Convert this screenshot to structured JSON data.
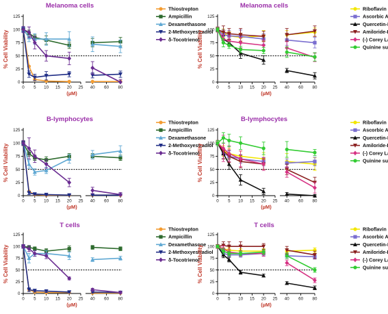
{
  "chart_data": [
    {
      "type": "line",
      "title": "Melanoma cells",
      "xlabel": "(µM)",
      "ylabel": "% Cell Viability",
      "x_ticks": [
        0,
        5,
        10,
        15,
        20,
        25,
        40,
        60,
        80
      ],
      "y_ticks": [
        0,
        25,
        50,
        75,
        100,
        125
      ],
      "x_break": [
        25,
        30
      ],
      "reference_line": 50,
      "x": [
        0,
        2.5,
        5,
        10,
        20,
        40,
        80
      ],
      "series": [
        {
          "name": "Thiostrepton",
          "color": "#f39c32",
          "marker": "circle",
          "values": [
            100,
            30,
            5,
            2,
            1,
            1,
            1
          ],
          "errors": [
            0,
            0,
            0,
            0,
            0,
            0,
            0
          ]
        },
        {
          "name": "Ampicillin",
          "color": "#2e6b2e",
          "marker": "square",
          "values": [
            100,
            93,
            85,
            80,
            70,
            75,
            77
          ],
          "errors": [
            5,
            6,
            5,
            8,
            6,
            8,
            8
          ]
        },
        {
          "name": "Dexamethasone",
          "color": "#5fa8d3",
          "marker": "triangle-up",
          "values": [
            100,
            85,
            82,
            82,
            82,
            72,
            68
          ],
          "errors": [
            5,
            8,
            10,
            12,
            14,
            14,
            12
          ]
        },
        {
          "name": "2-Methoxyestradiol",
          "color": "#1f2d86",
          "marker": "triangle-down",
          "values": [
            100,
            15,
            9,
            12,
            15,
            13,
            15
          ],
          "errors": [
            4,
            6,
            6,
            8,
            5,
            5,
            6
          ]
        },
        {
          "name": "δ-Tocotrienol",
          "color": "#6a2c91",
          "marker": "diamond",
          "values": [
            100,
            95,
            75,
            50,
            45,
            27,
            0
          ],
          "errors": [
            6,
            10,
            12,
            10,
            12,
            12,
            5
          ]
        }
      ]
    },
    {
      "type": "line",
      "title": "Melanoma cells",
      "xlabel": "(µM)",
      "ylabel": "% Cell Viability",
      "x_ticks": [
        0,
        5,
        10,
        15,
        20,
        25,
        40,
        60,
        80
      ],
      "y_ticks": [
        0,
        25,
        50,
        75,
        100,
        125
      ],
      "x_break": [
        25,
        30
      ],
      "reference_line": 50,
      "x": [
        0,
        2.5,
        5,
        10,
        20,
        40,
        80
      ],
      "series": [
        {
          "name": "Riboflavin",
          "color": "#f2e600",
          "marker": "circle",
          "values": [
            100,
            93,
            88,
            85,
            88,
            90,
            95
          ],
          "errors": [
            4,
            8,
            8,
            8,
            10,
            8,
            8
          ]
        },
        {
          "name": "Ascorbic Acid",
          "color": "#7b6fd0",
          "marker": "square",
          "values": [
            100,
            90,
            88,
            87,
            82,
            80,
            75
          ],
          "errors": [
            5,
            10,
            10,
            12,
            10,
            10,
            10
          ]
        },
        {
          "name": "Quercetin-HCL",
          "color": "#111111",
          "marker": "triangle-up",
          "values": [
            100,
            82,
            75,
            55,
            42,
            22,
            12
          ],
          "errors": [
            4,
            6,
            6,
            10,
            8,
            4,
            6
          ]
        },
        {
          "name": "Amiloride-HCL",
          "color": "#8b2020",
          "marker": "triangle-down",
          "values": [
            100,
            95,
            92,
            90,
            87,
            90,
            97
          ],
          "errors": [
            5,
            12,
            10,
            12,
            10,
            12,
            10
          ]
        },
        {
          "name": "(-) Corey Lactone",
          "color": "#d63384",
          "marker": "diamond",
          "values": [
            100,
            82,
            78,
            75,
            70,
            65,
            47
          ],
          "errors": [
            5,
            8,
            10,
            10,
            10,
            12,
            8
          ]
        },
        {
          "name": "Quinine sulphate",
          "color": "#33cc33",
          "marker": "circle",
          "values": [
            100,
            75,
            70,
            62,
            60,
            57,
            48
          ],
          "errors": [
            4,
            8,
            6,
            6,
            6,
            10,
            8
          ]
        }
      ]
    },
    {
      "type": "line",
      "title": "B-lymphocytes",
      "xlabel": "(µM)",
      "ylabel": "% Cell Viability",
      "x_ticks": [
        0,
        5,
        10,
        15,
        20,
        25,
        40,
        60,
        80
      ],
      "y_ticks": [
        0,
        25,
        50,
        75,
        100,
        125
      ],
      "x_break": [
        25,
        30
      ],
      "reference_line": 50,
      "x": [
        0,
        2.5,
        5,
        10,
        20,
        40,
        80
      ],
      "series": [
        {
          "name": "Thiostrepton",
          "color": "#f39c32",
          "marker": "circle",
          "values": [
            100,
            8,
            2,
            1,
            1,
            1,
            1
          ],
          "errors": [
            0,
            0,
            0,
            0,
            0,
            0,
            0
          ]
        },
        {
          "name": "Ampicillin",
          "color": "#2e6b2e",
          "marker": "square",
          "values": [
            100,
            80,
            72,
            68,
            75,
            75,
            72
          ],
          "errors": [
            4,
            5,
            5,
            6,
            5,
            5,
            5
          ]
        },
        {
          "name": "Dexamethasone",
          "color": "#5fa8d3",
          "marker": "triangle-up",
          "values": [
            100,
            60,
            45,
            48,
            70,
            78,
            85
          ],
          "errors": [
            5,
            8,
            6,
            6,
            8,
            8,
            10
          ]
        },
        {
          "name": "2-Methoxyestradiol",
          "color": "#1f2d86",
          "marker": "triangle-down",
          "values": [
            100,
            5,
            3,
            2,
            1,
            1,
            1
          ],
          "errors": [
            3,
            3,
            2,
            2,
            1,
            1,
            1
          ]
        },
        {
          "name": "δ-Tocotrienol",
          "color": "#6a2c91",
          "marker": "diamond",
          "values": [
            100,
            90,
            75,
            60,
            25,
            10,
            2
          ],
          "errors": [
            5,
            20,
            12,
            8,
            8,
            6,
            4
          ]
        }
      ]
    },
    {
      "type": "line",
      "title": "B-lymphocytes",
      "xlabel": "(µM)",
      "ylabel": "% Cell Viability",
      "x_ticks": [
        0,
        5,
        10,
        15,
        20,
        25,
        40,
        60,
        80
      ],
      "y_ticks": [
        0,
        25,
        50,
        75,
        100,
        125
      ],
      "x_break": [
        25,
        30
      ],
      "reference_line": 50,
      "x": [
        0,
        2.5,
        5,
        10,
        20,
        40,
        80
      ],
      "series": [
        {
          "name": "Riboflavin",
          "color": "#f2e600",
          "marker": "circle",
          "values": [
            100,
            85,
            80,
            75,
            70,
            65,
            60
          ],
          "errors": [
            5,
            10,
            10,
            10,
            12,
            15,
            12
          ]
        },
        {
          "name": "Ascorbic Acid",
          "color": "#7b6fd0",
          "marker": "square",
          "values": [
            100,
            80,
            75,
            70,
            65,
            62,
            65
          ],
          "errors": [
            5,
            10,
            10,
            8,
            8,
            8,
            8
          ]
        },
        {
          "name": "Quercetin-HCL",
          "color": "#111111",
          "marker": "triangle-up",
          "values": [
            100,
            80,
            60,
            30,
            8,
            3,
            0
          ],
          "errors": [
            5,
            10,
            10,
            10,
            6,
            3,
            2
          ]
        },
        {
          "name": "Amiloride-HCL",
          "color": "#8b2020",
          "marker": "triangle-down",
          "values": [
            100,
            85,
            75,
            65,
            60,
            50,
            25
          ],
          "errors": [
            5,
            15,
            12,
            12,
            10,
            10,
            10
          ]
        },
        {
          "name": "(-) Corey Lactone",
          "color": "#d63384",
          "marker": "diamond",
          "values": [
            100,
            90,
            80,
            70,
            60,
            45,
            15
          ],
          "errors": [
            5,
            25,
            15,
            15,
            12,
            10,
            10
          ]
        },
        {
          "name": "Quinine sulphate",
          "color": "#33cc33",
          "marker": "circle",
          "values": [
            100,
            110,
            105,
            100,
            90,
            88,
            82
          ],
          "errors": [
            5,
            10,
            12,
            12,
            12,
            15,
            6
          ]
        }
      ]
    },
    {
      "type": "line",
      "title": "T cells",
      "xlabel": "(µM)",
      "ylabel": "% Cell Viability",
      "x_ticks": [
        0,
        5,
        10,
        15,
        20,
        25,
        40,
        60,
        80
      ],
      "y_ticks": [
        0,
        25,
        50,
        75,
        100,
        125
      ],
      "x_break": [
        25,
        30
      ],
      "reference_line": 50,
      "x": [
        0,
        2.5,
        5,
        10,
        20,
        40,
        80
      ],
      "series": [
        {
          "name": "Thiostrepton",
          "color": "#f39c32",
          "marker": "circle",
          "values": [
            100,
            8,
            3,
            2,
            2,
            1,
            1
          ],
          "errors": [
            0,
            0,
            0,
            0,
            0,
            0,
            0
          ]
        },
        {
          "name": "Ampicillin",
          "color": "#2e6b2e",
          "marker": "square",
          "values": [
            100,
            98,
            95,
            90,
            95,
            98,
            95
          ],
          "errors": [
            3,
            4,
            4,
            5,
            6,
            4,
            4
          ]
        },
        {
          "name": "Dexamethasone",
          "color": "#5fa8d3",
          "marker": "triangle-up",
          "values": [
            100,
            75,
            85,
            85,
            80,
            72,
            75
          ],
          "errors": [
            4,
            10,
            6,
            6,
            8,
            4,
            4
          ]
        },
        {
          "name": "2-Methoxyestradiol",
          "color": "#1f2d86",
          "marker": "triangle-down",
          "values": [
            100,
            8,
            6,
            5,
            3,
            3,
            2
          ],
          "errors": [
            3,
            4,
            3,
            3,
            2,
            2,
            2
          ]
        },
        {
          "name": "δ-Tocotrienol",
          "color": "#6a2c91",
          "marker": "diamond",
          "values": [
            100,
            95,
            85,
            80,
            32,
            8,
            2
          ],
          "errors": [
            4,
            6,
            6,
            6,
            3,
            3,
            2
          ]
        }
      ]
    },
    {
      "type": "line",
      "title": "T cells",
      "xlabel": "(µM)",
      "ylabel": "% Cell Viability",
      "x_ticks": [
        0,
        5,
        10,
        15,
        20,
        25,
        40,
        60,
        80
      ],
      "y_ticks": [
        0,
        25,
        50,
        75,
        100,
        125
      ],
      "x_break": [
        25,
        30
      ],
      "reference_line": 50,
      "x": [
        0,
        2.5,
        5,
        10,
        20,
        40,
        80
      ],
      "series": [
        {
          "name": "Riboflavin",
          "color": "#f2e600",
          "marker": "circle",
          "values": [
            100,
            95,
            92,
            90,
            90,
            90,
            92
          ],
          "errors": [
            3,
            6,
            5,
            5,
            5,
            5,
            5
          ]
        },
        {
          "name": "Ascorbic Acid",
          "color": "#7b6fd0",
          "marker": "square",
          "values": [
            100,
            85,
            82,
            82,
            85,
            80,
            78
          ],
          "errors": [
            3,
            6,
            5,
            5,
            5,
            6,
            5
          ]
        },
        {
          "name": "Quercetin-HCL",
          "color": "#111111",
          "marker": "triangle-up",
          "values": [
            100,
            82,
            72,
            45,
            38,
            22,
            12
          ],
          "errors": [
            3,
            6,
            5,
            4,
            3,
            3,
            4
          ]
        },
        {
          "name": "Amiloride-HCL",
          "color": "#8b2020",
          "marker": "triangle-down",
          "values": [
            100,
            102,
            100,
            100,
            100,
            92,
            82
          ],
          "errors": [
            4,
            8,
            10,
            10,
            6,
            8,
            8
          ]
        },
        {
          "name": "(-) Corey Lactone",
          "color": "#d63384",
          "marker": "diamond",
          "values": [
            100,
            95,
            88,
            85,
            85,
            65,
            28
          ],
          "errors": [
            3,
            6,
            6,
            6,
            6,
            6,
            5
          ]
        },
        {
          "name": "Quinine sulphate",
          "color": "#33cc33",
          "marker": "circle",
          "values": [
            100,
            90,
            85,
            85,
            88,
            80,
            50
          ],
          "errors": [
            3,
            6,
            5,
            5,
            5,
            6,
            5
          ]
        }
      ]
    }
  ]
}
